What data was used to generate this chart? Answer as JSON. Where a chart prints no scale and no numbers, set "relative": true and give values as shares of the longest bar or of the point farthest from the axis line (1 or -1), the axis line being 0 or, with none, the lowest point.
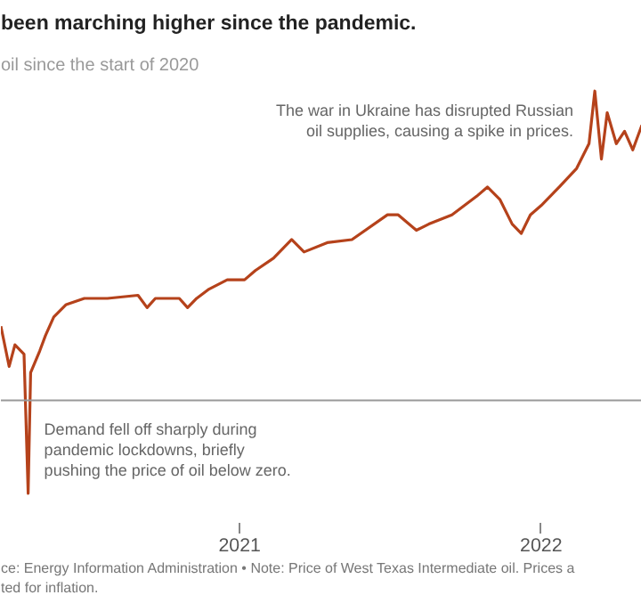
{
  "chart_data": {
    "type": "line",
    "title": "been marching higher since the pandemic.",
    "subtitle": "oil since the start of 2020",
    "relative": true,
    "x": [
      "2020-03-18",
      "2020-03-28",
      "2020-04-04",
      "2020-04-15",
      "2020-04-20",
      "2020-04-23",
      "2020-05-04",
      "2020-05-11",
      "2020-05-21",
      "2020-06-05",
      "2020-06-27",
      "2020-07-25",
      "2020-08-31",
      "2020-09-11",
      "2020-09-21",
      "2020-10-20",
      "2020-10-30",
      "2020-11-10",
      "2020-11-25",
      "2020-12-17",
      "2021-01-07",
      "2021-01-20",
      "2021-02-11",
      "2021-03-05",
      "2021-03-20",
      "2021-04-17",
      "2021-05-17",
      "2021-06-29",
      "2021-07-12",
      "2021-08-03",
      "2021-08-18",
      "2021-09-15",
      "2021-10-15",
      "2021-10-28",
      "2021-11-12",
      "2021-11-27",
      "2021-12-08",
      "2021-12-19",
      "2022-01-01",
      "2022-01-23",
      "2022-02-13",
      "2022-02-28",
      "2022-03-07",
      "2022-03-15",
      "2022-03-22",
      "2022-04-02",
      "2022-04-12",
      "2022-04-22",
      "2022-05-03"
    ],
    "series": [
      {
        "color": "#b5421b",
        "values": [
          0.24,
          0.11,
          0.18,
          0.15,
          -0.3,
          0.09,
          0.16,
          0.21,
          0.27,
          0.31,
          0.33,
          0.33,
          0.34,
          0.3,
          0.33,
          0.33,
          0.3,
          0.33,
          0.36,
          0.39,
          0.39,
          0.42,
          0.46,
          0.52,
          0.48,
          0.51,
          0.52,
          0.6,
          0.6,
          0.55,
          0.57,
          0.6,
          0.66,
          0.69,
          0.65,
          0.57,
          0.54,
          0.6,
          0.63,
          0.69,
          0.75,
          0.83,
          1,
          0.78,
          0.93,
          0.83,
          0.87,
          0.81,
          0.89
        ]
      }
    ],
    "xlim": [
      "2020-03-18",
      "2022-05-03"
    ],
    "xticks": [
      {
        "value": "2021-01-01",
        "label": "2021"
      },
      {
        "value": "2022-01-01",
        "label": "2022"
      }
    ],
    "tick_labels": "x",
    "grid": false,
    "marker": "none",
    "line_style": "solid",
    "annotations": [
      {
        "text": "The war in Ukraine has disrupted Russian\noil supplies, causing a spike in prices.",
        "x": "2022-03-07",
        "y": 1
      },
      {
        "text": "Demand fell off sharply during\npandemic lockdowns, briefly\npushing the price of oil below zero.",
        "x": "2020-04-20",
        "y": -0.3
      },
      "ce: Energy Information Administration • Note: Price of West Texas Intermediate oil. Prices a\nted for inflation."
    ]
  }
}
